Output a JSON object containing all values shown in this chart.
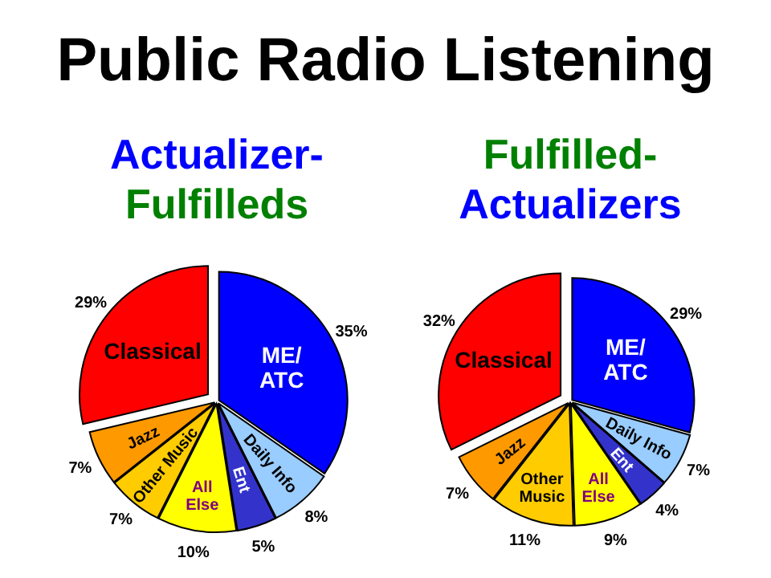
{
  "chart_data": [
    {
      "type": "pie",
      "title": "Actualizer-Fulfilleds",
      "categories": [
        "ME/ATC",
        "Daily Info",
        "Ent",
        "All Else",
        "Other Music",
        "Jazz",
        "Classical"
      ],
      "values": [
        35,
        8,
        5,
        10,
        7,
        7,
        29
      ],
      "value_labels": [
        "35%",
        "8%",
        "5%",
        "10%",
        "7%",
        "7%",
        "29%"
      ],
      "colors": [
        "#0000ff",
        "#99ccff",
        "#3333cc",
        "#ffff00",
        "#ffcc00",
        "#ff9900",
        "#ff0000"
      ],
      "legend": false,
      "annotations": [
        "Public Radio Listening"
      ]
    },
    {
      "type": "pie",
      "title": "Fulfilled-Actualizers",
      "categories": [
        "ME/ATC",
        "Daily Info",
        "Ent",
        "All Else",
        "Other Music",
        "Jazz",
        "Classical"
      ],
      "values": [
        29,
        7,
        4,
        9,
        11,
        7,
        32
      ],
      "value_labels": [
        "29%",
        "7%",
        "4%",
        "9%",
        "11%",
        "7%",
        "32%"
      ],
      "colors": [
        "#0000ff",
        "#99ccff",
        "#3333cc",
        "#ffff00",
        "#ffcc00",
        "#ff9900",
        "#ff0000"
      ],
      "legend": false
    }
  ]
}
